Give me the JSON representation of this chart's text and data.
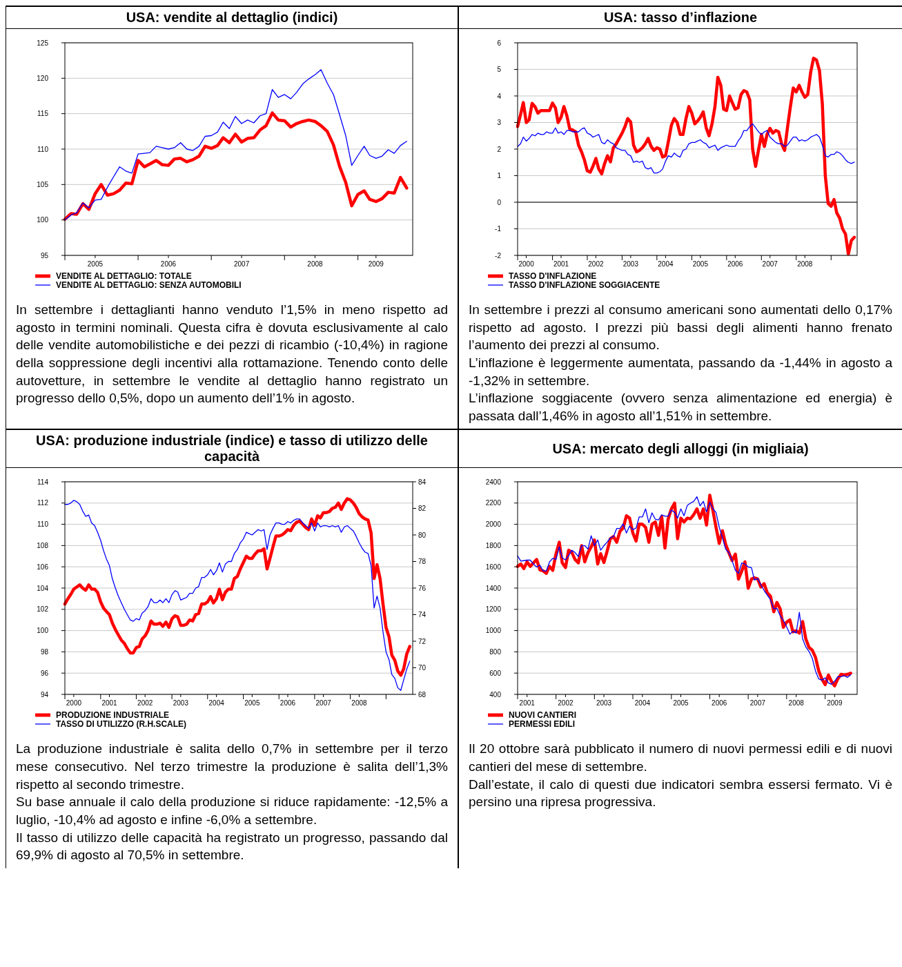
{
  "chart_data": [
    {
      "type": "line",
      "title": "USA: vendite al dettaglio (indici)",
      "grid": "y",
      "legend": "bottom",
      "x": [
        "2005-01",
        "2005-02",
        "2005-03",
        "2005-04",
        "2005-05",
        "2005-06",
        "2005-07",
        "2005-08",
        "2005-09",
        "2005-10",
        "2005-11",
        "2005-12",
        "2006-01",
        "2006-02",
        "2006-03",
        "2006-04",
        "2006-05",
        "2006-06",
        "2006-07",
        "2006-08",
        "2006-09",
        "2006-10",
        "2006-11",
        "2006-12",
        "2007-01",
        "2007-02",
        "2007-03",
        "2007-04",
        "2007-05",
        "2007-06",
        "2007-07",
        "2007-08",
        "2007-09",
        "2007-10",
        "2007-11",
        "2007-12",
        "2008-01",
        "2008-02",
        "2008-03",
        "2008-04",
        "2008-05",
        "2008-06",
        "2008-07",
        "2008-08",
        "2008-09",
        "2008-10",
        "2008-11",
        "2008-12",
        "2009-01",
        "2009-02",
        "2009-03",
        "2009-04",
        "2009-05",
        "2009-06",
        "2009-07",
        "2009-08",
        "2009-09"
      ],
      "xlim": [
        "2005-01",
        "2009-10"
      ],
      "xticks": [
        {
          "value": "2005-01",
          "label": null
        },
        {
          "value": "2005-06",
          "label": "2005"
        },
        {
          "value": "2006-01",
          "label": null
        },
        {
          "value": "2006-06",
          "label": "2006"
        },
        {
          "value": "2007-01",
          "label": null
        },
        {
          "value": "2007-06",
          "label": "2007"
        },
        {
          "value": "2008-01",
          "label": null
        },
        {
          "value": "2008-06",
          "label": "2008"
        },
        {
          "value": "2009-01",
          "label": null
        },
        {
          "value": "2009-04",
          "label": "2009"
        }
      ],
      "ylim": [
        95,
        125
      ],
      "yticks": [
        95,
        100,
        105,
        110,
        115,
        120,
        125
      ],
      "series": [
        {
          "name": "VENDITE AL DETTAGLIO: TOTALE",
          "color": "#ff0000",
          "values": [
            100.1,
            100.9,
            100.8,
            102.3,
            101.5,
            103.7,
            105.0,
            103.5,
            103.7,
            104.2,
            105.2,
            105.1,
            108.4,
            107.5,
            107.9,
            108.4,
            107.8,
            107.7,
            108.6,
            108.7,
            108.2,
            108.5,
            109.0,
            110.4,
            110.1,
            110.5,
            111.6,
            110.9,
            112.1,
            111.0,
            111.5,
            111.6,
            112.7,
            113.3,
            115.1,
            114.1,
            114.0,
            113.1,
            113.6,
            113.9,
            114.1,
            113.9,
            113.3,
            112.5,
            110.6,
            107.6,
            105.3,
            102.0,
            103.6,
            104.1,
            102.9,
            102.6,
            103.0,
            103.9,
            103.8,
            106.0,
            104.5
          ]
        },
        {
          "name": "VENDITE AL DETTAGLIO: SENZA AUTOMOBILI",
          "color": "#0000ff",
          "values": [
            100.0,
            100.7,
            101.0,
            102.4,
            101.7,
            102.8,
            102.9,
            104.6,
            106.1,
            107.5,
            106.9,
            106.6,
            109.3,
            109.4,
            109.5,
            110.4,
            110.2,
            110.0,
            110.2,
            110.9,
            110.0,
            109.8,
            110.4,
            111.8,
            111.9,
            112.4,
            113.8,
            112.9,
            114.6,
            113.6,
            114.1,
            113.7,
            114.7,
            115.0,
            118.4,
            117.3,
            117.7,
            117.1,
            118.0,
            119.2,
            119.9,
            120.5,
            121.2,
            119.3,
            117.7,
            114.9,
            111.9,
            107.7,
            109.1,
            110.4,
            109.1,
            108.7,
            109.0,
            109.9,
            109.4,
            110.5,
            111.1
          ]
        }
      ],
      "annotations": [
        "In settembre i dettaglianti hanno venduto l’1,5% in meno rispetto ad agosto in termini nominali. Questa cifra è dovuta esclusivamente al calo delle vendite automobilistiche e dei pezzi di ricambio (-10,4%) in ragione della soppressione degli incentivi alla rottamazione. Tenendo conto delle autovetture, in settembre le vendite al dettaglio hanno registrato un progresso dello 0,5%, dopo un aumento dell’1% in agosto."
      ]
    },
    {
      "type": "line",
      "title": "USA: tasso d’inflazione",
      "grid": "y",
      "legend": "bottom",
      "x": [
        "2000-01",
        "2000-02",
        "2000-03",
        "2000-04",
        "2000-05",
        "2000-06",
        "2000-07",
        "2000-08",
        "2000-09",
        "2000-10",
        "2000-11",
        "2000-12",
        "2001-01",
        "2001-02",
        "2001-03",
        "2001-04",
        "2001-05",
        "2001-06",
        "2001-07",
        "2001-08",
        "2001-09",
        "2001-10",
        "2001-11",
        "2001-12",
        "2002-01",
        "2002-02",
        "2002-03",
        "2002-04",
        "2002-05",
        "2002-06",
        "2002-07",
        "2002-08",
        "2002-09",
        "2002-10",
        "2002-11",
        "2002-12",
        "2003-01",
        "2003-02",
        "2003-03",
        "2003-04",
        "2003-05",
        "2003-06",
        "2003-07",
        "2003-08",
        "2003-09",
        "2003-10",
        "2003-11",
        "2003-12",
        "2004-01",
        "2004-02",
        "2004-03",
        "2004-04",
        "2004-05",
        "2004-06",
        "2004-07",
        "2004-08",
        "2004-09",
        "2004-10",
        "2004-11",
        "2004-12",
        "2005-01",
        "2005-02",
        "2005-03",
        "2005-04",
        "2005-05",
        "2005-06",
        "2005-07",
        "2005-08",
        "2005-09",
        "2005-10",
        "2005-11",
        "2005-12",
        "2006-01",
        "2006-02",
        "2006-03",
        "2006-04",
        "2006-05",
        "2006-06",
        "2006-07",
        "2006-08",
        "2006-09",
        "2006-10",
        "2006-11",
        "2006-12",
        "2007-01",
        "2007-02",
        "2007-03",
        "2007-04",
        "2007-05",
        "2007-06",
        "2007-07",
        "2007-08",
        "2007-09",
        "2007-10",
        "2007-11",
        "2007-12",
        "2008-01",
        "2008-02",
        "2008-03",
        "2008-04",
        "2008-05",
        "2008-06",
        "2008-07",
        "2008-08",
        "2008-09",
        "2008-10",
        "2008-11",
        "2008-12",
        "2009-01",
        "2009-02",
        "2009-03",
        "2009-04",
        "2009-05",
        "2009-06",
        "2009-07",
        "2009-08",
        "2009-09"
      ],
      "xlim": [
        "2000-01",
        "2009-10"
      ],
      "xticks": [
        {
          "value": "2000-01",
          "label": null
        },
        {
          "value": "2000-04",
          "label": "2000"
        },
        {
          "value": "2001-01",
          "label": null
        },
        {
          "value": "2001-04",
          "label": "2001"
        },
        {
          "value": "2002-01",
          "label": null
        },
        {
          "value": "2002-04",
          "label": "2002"
        },
        {
          "value": "2003-01",
          "label": null
        },
        {
          "value": "2003-04",
          "label": "2003"
        },
        {
          "value": "2004-01",
          "label": null
        },
        {
          "value": "2004-04",
          "label": "2004"
        },
        {
          "value": "2005-01",
          "label": null
        },
        {
          "value": "2005-04",
          "label": "2005"
        },
        {
          "value": "2006-01",
          "label": null
        },
        {
          "value": "2006-04",
          "label": "2006"
        },
        {
          "value": "2007-01",
          "label": null
        },
        {
          "value": "2007-04",
          "label": "2007"
        },
        {
          "value": "2008-01",
          "label": null
        },
        {
          "value": "2008-04",
          "label": "2008"
        },
        {
          "value": "2009-01",
          "label": null
        }
      ],
      "ylim": [
        -2,
        6
      ],
      "yticks": [
        -2,
        -1,
        0,
        1,
        2,
        3,
        4,
        5,
        6
      ],
      "ref_lines": [
        {
          "axis": "y",
          "value": 0,
          "color": "#000000"
        }
      ],
      "series": [
        {
          "name": "TASSO D'INFLAZIONE",
          "color": "#ff0000",
          "values": [
            2.85,
            3.3,
            3.75,
            3.0,
            3.1,
            3.72,
            3.6,
            3.35,
            3.45,
            3.45,
            3.45,
            3.45,
            3.73,
            3.55,
            3.0,
            3.2,
            3.6,
            3.25,
            2.75,
            2.72,
            2.65,
            2.15,
            1.9,
            1.6,
            1.18,
            1.13,
            1.35,
            1.65,
            1.25,
            1.07,
            1.45,
            1.75,
            1.52,
            2.05,
            2.2,
            2.4,
            2.6,
            2.85,
            3.15,
            3.02,
            2.15,
            1.9,
            1.95,
            2.05,
            2.2,
            2.4,
            2.1,
            1.95,
            2.05,
            2.0,
            1.7,
            1.75,
            2.3,
            2.9,
            3.15,
            3.0,
            2.55,
            2.55,
            3.15,
            3.6,
            3.35,
            2.95,
            3.05,
            3.2,
            3.4,
            2.8,
            2.5,
            2.95,
            3.6,
            4.7,
            4.4,
            3.5,
            3.45,
            4.0,
            3.75,
            3.5,
            3.55,
            4.05,
            4.2,
            4.15,
            3.85,
            2.0,
            1.35,
            1.95,
            2.55,
            2.1,
            2.55,
            2.78,
            2.6,
            2.7,
            2.65,
            2.2,
            1.95,
            2.8,
            3.6,
            4.3,
            4.15,
            4.4,
            4.15,
            3.95,
            4.05,
            4.9,
            5.42,
            5.35,
            4.95,
            3.7,
            1.0,
            -0.05,
            -0.15,
            0.1,
            -0.4,
            -0.6,
            -1.0,
            -1.2,
            -1.95,
            -1.44,
            -1.32
          ]
        },
        {
          "name": "TASSO D'INFLAZIONE SOGGIACENTE",
          "color": "#0000ff",
          "values": [
            2.1,
            2.2,
            2.45,
            2.3,
            2.4,
            2.55,
            2.5,
            2.6,
            2.55,
            2.55,
            2.65,
            2.6,
            2.6,
            2.8,
            2.6,
            2.65,
            2.55,
            2.7,
            2.7,
            2.65,
            2.65,
            2.65,
            2.75,
            2.8,
            2.6,
            2.55,
            2.45,
            2.5,
            2.55,
            2.25,
            2.2,
            2.35,
            2.25,
            2.2,
            2.05,
            2.0,
            1.95,
            1.95,
            1.8,
            1.75,
            1.5,
            1.55,
            1.5,
            1.55,
            1.3,
            1.25,
            1.3,
            1.1,
            1.1,
            1.15,
            1.25,
            1.55,
            1.75,
            1.7,
            1.85,
            1.75,
            1.7,
            1.95,
            2.0,
            2.2,
            2.25,
            2.25,
            2.3,
            2.35,
            2.25,
            2.2,
            2.05,
            2.1,
            2.15,
            1.95,
            2.05,
            2.1,
            2.15,
            2.1,
            2.1,
            2.1,
            2.3,
            2.45,
            2.7,
            2.7,
            2.85,
            2.95,
            2.8,
            2.65,
            2.55,
            2.65,
            2.7,
            2.45,
            2.35,
            2.25,
            2.2,
            2.2,
            2.1,
            2.15,
            2.3,
            2.45,
            2.45,
            2.3,
            2.35,
            2.3,
            2.35,
            2.45,
            2.5,
            2.55,
            2.45,
            2.15,
            1.75,
            1.7,
            1.8,
            1.8,
            1.9,
            1.85,
            1.75,
            1.6,
            1.5,
            1.46,
            1.51
          ]
        }
      ],
      "annotations": [
        "In settembre i prezzi al consumo americani sono aumentati dello 0,17% rispetto ad agosto. I prezzi più bassi degli alimenti hanno frenato l’aumento dei prezzi al consumo.",
        "L’inflazione è leggermente aumentata, passando da -1,44% in agosto a -1,32% in settembre.",
        "L’inflazione soggiacente (ovvero senza alimentazione ed energia) è passata dall’1,46% in agosto all’1,51% in settembre."
      ]
    },
    {
      "type": "line",
      "title": "USA: produzione industriale (indice) e tasso di utilizzo delle capacità",
      "grid": "y",
      "legend": "bottom",
      "x": [
        "2000-01",
        "2000-02",
        "2000-03",
        "2000-04",
        "2000-05",
        "2000-06",
        "2000-07",
        "2000-08",
        "2000-09",
        "2000-10",
        "2000-11",
        "2000-12",
        "2001-01",
        "2001-02",
        "2001-03",
        "2001-04",
        "2001-05",
        "2001-06",
        "2001-07",
        "2001-08",
        "2001-09",
        "2001-10",
        "2001-11",
        "2001-12",
        "2002-01",
        "2002-02",
        "2002-03",
        "2002-04",
        "2002-05",
        "2002-06",
        "2002-07",
        "2002-08",
        "2002-09",
        "2002-10",
        "2002-11",
        "2002-12",
        "2003-01",
        "2003-02",
        "2003-03",
        "2003-04",
        "2003-05",
        "2003-06",
        "2003-07",
        "2003-08",
        "2003-09",
        "2003-10",
        "2003-11",
        "2003-12",
        "2004-01",
        "2004-02",
        "2004-03",
        "2004-04",
        "2004-05",
        "2004-06",
        "2004-07",
        "2004-08",
        "2004-09",
        "2004-10",
        "2004-11",
        "2004-12",
        "2005-01",
        "2005-02",
        "2005-03",
        "2005-04",
        "2005-05",
        "2005-06",
        "2005-07",
        "2005-08",
        "2005-09",
        "2005-10",
        "2005-11",
        "2005-12",
        "2006-01",
        "2006-02",
        "2006-03",
        "2006-04",
        "2006-05",
        "2006-06",
        "2006-07",
        "2006-08",
        "2006-09",
        "2006-10",
        "2006-11",
        "2006-12",
        "2007-01",
        "2007-02",
        "2007-03",
        "2007-04",
        "2007-05",
        "2007-06",
        "2007-07",
        "2007-08",
        "2007-09",
        "2007-10",
        "2007-11",
        "2007-12",
        "2008-01",
        "2008-02",
        "2008-03",
        "2008-04",
        "2008-05",
        "2008-06",
        "2008-07",
        "2008-08",
        "2008-09",
        "2008-10",
        "2008-11",
        "2008-12",
        "2009-01",
        "2009-02",
        "2009-03",
        "2009-04",
        "2009-05",
        "2009-06",
        "2009-07",
        "2009-08",
        "2009-09"
      ],
      "xlim": [
        "2000-01",
        "2009-10"
      ],
      "xticks": [
        {
          "value": "2000-01",
          "label": null
        },
        {
          "value": "2000-04",
          "label": "2000"
        },
        {
          "value": "2001-01",
          "label": null
        },
        {
          "value": "2001-04",
          "label": "2001"
        },
        {
          "value": "2002-01",
          "label": null
        },
        {
          "value": "2002-04",
          "label": "2002"
        },
        {
          "value": "2003-01",
          "label": null
        },
        {
          "value": "2003-04",
          "label": "2003"
        },
        {
          "value": "2004-01",
          "label": null
        },
        {
          "value": "2004-04",
          "label": "2004"
        },
        {
          "value": "2005-01",
          "label": null
        },
        {
          "value": "2005-04",
          "label": "2005"
        },
        {
          "value": "2006-01",
          "label": null
        },
        {
          "value": "2006-04",
          "label": "2006"
        },
        {
          "value": "2007-01",
          "label": null
        },
        {
          "value": "2007-04",
          "label": "2007"
        },
        {
          "value": "2008-01",
          "label": null
        },
        {
          "value": "2008-04",
          "label": "2008"
        },
        {
          "value": "2009-01",
          "label": null
        }
      ],
      "ylim": [
        94,
        114
      ],
      "yticks": [
        94,
        96,
        98,
        100,
        102,
        104,
        106,
        108,
        110,
        112,
        114
      ],
      "y2lim": [
        68,
        84
      ],
      "y2ticks": [
        68,
        70,
        72,
        74,
        76,
        78,
        80,
        82,
        84
      ],
      "series": [
        {
          "name": "PRODUZIONE INDUSTRIALE",
          "color": "#ff0000",
          "values": [
            102.5,
            103.0,
            103.4,
            103.9,
            104.1,
            104.3,
            104.0,
            103.8,
            104.3,
            103.9,
            103.9,
            103.6,
            102.7,
            102.1,
            101.8,
            101.5,
            100.7,
            100.1,
            99.6,
            99.1,
            98.8,
            98.3,
            97.9,
            97.9,
            98.4,
            98.5,
            99.2,
            99.5,
            100.0,
            100.9,
            100.6,
            100.6,
            100.7,
            100.4,
            100.8,
            100.3,
            101.1,
            101.4,
            101.3,
            100.5,
            100.5,
            100.6,
            101.0,
            100.9,
            101.5,
            101.6,
            102.5,
            102.5,
            102.7,
            103.2,
            102.6,
            103.0,
            103.9,
            102.9,
            103.6,
            103.9,
            103.9,
            104.9,
            105.1,
            105.8,
            106.4,
            107.0,
            106.8,
            106.8,
            107.2,
            107.5,
            107.5,
            107.7,
            105.8,
            106.8,
            107.9,
            108.9,
            108.9,
            109.0,
            109.2,
            109.5,
            109.4,
            109.9,
            110.2,
            110.3,
            110.0,
            109.7,
            109.5,
            110.5,
            109.9,
            110.8,
            110.6,
            111.1,
            111.1,
            111.2,
            111.5,
            111.6,
            112.0,
            111.4,
            112.0,
            112.4,
            112.3,
            112.0,
            111.6,
            111.0,
            110.7,
            110.5,
            110.4,
            109.2,
            104.9,
            106.2,
            104.9,
            102.5,
            100.3,
            99.4,
            97.7,
            97.2,
            96.2,
            95.8,
            96.4,
            97.8,
            98.5
          ]
        },
        {
          "name": "TASSO DI UTILIZZO (R.H.SCALE)",
          "color": "#0000ff",
          "axis": "y2",
          "values": [
            82.3,
            82.3,
            82.4,
            82.6,
            82.5,
            82.3,
            81.8,
            81.4,
            81.5,
            80.9,
            80.7,
            80.2,
            79.6,
            78.8,
            78.2,
            77.7,
            76.7,
            76.0,
            75.4,
            74.9,
            74.4,
            74.0,
            73.6,
            73.5,
            73.7,
            73.6,
            74.1,
            74.3,
            74.6,
            75.2,
            74.9,
            74.9,
            75.1,
            74.9,
            75.2,
            74.9,
            75.5,
            75.8,
            75.7,
            75.1,
            75.2,
            75.3,
            75.6,
            75.6,
            76.0,
            76.1,
            76.8,
            76.8,
            77.0,
            77.4,
            77.0,
            77.3,
            77.9,
            77.2,
            77.8,
            78.0,
            78.0,
            78.6,
            78.9,
            79.4,
            79.7,
            80.2,
            80.1,
            80.0,
            80.2,
            80.4,
            80.3,
            80.4,
            78.9,
            80.0,
            80.5,
            80.9,
            80.9,
            80.8,
            80.8,
            81.0,
            80.9,
            81.1,
            81.2,
            81.2,
            80.9,
            80.7,
            80.5,
            80.9,
            80.3,
            80.9,
            80.6,
            80.7,
            80.7,
            80.6,
            80.7,
            80.6,
            80.7,
            80.2,
            80.6,
            80.7,
            80.5,
            80.3,
            79.9,
            79.4,
            79.0,
            78.7,
            78.6,
            77.7,
            74.5,
            75.4,
            74.5,
            72.7,
            71.2,
            70.6,
            69.5,
            69.2,
            68.5,
            68.3,
            69.1,
            69.9,
            70.5
          ]
        }
      ],
      "annotations": [
        "La produzione industriale è salita dello 0,7% in settembre per il terzo mese consecutivo. Nel terzo trimestre la produzione è salita dell’1,3% rispetto al secondo trimestre.",
        "Su base annuale il calo della produzione si riduce rapidamente: -12,5% a luglio, -10,4% ad agosto e infine -6,0% a settembre.",
        "Il tasso di utilizzo delle capacità ha registrato un progresso, passando dal 69,9% di agosto al 70,5% in settembre."
      ]
    },
    {
      "type": "line",
      "title": "USA: mercato degli alloggi (in migliaia)",
      "grid": "y",
      "legend": "bottom",
      "x": [
        "2001-01",
        "2001-02",
        "2001-03",
        "2001-04",
        "2001-05",
        "2001-06",
        "2001-07",
        "2001-08",
        "2001-09",
        "2001-10",
        "2001-11",
        "2001-12",
        "2002-01",
        "2002-02",
        "2002-03",
        "2002-04",
        "2002-05",
        "2002-06",
        "2002-07",
        "2002-08",
        "2002-09",
        "2002-10",
        "2002-11",
        "2002-12",
        "2003-01",
        "2003-02",
        "2003-03",
        "2003-04",
        "2003-05",
        "2003-06",
        "2003-07",
        "2003-08",
        "2003-09",
        "2003-10",
        "2003-11",
        "2003-12",
        "2004-01",
        "2004-02",
        "2004-03",
        "2004-04",
        "2004-05",
        "2004-06",
        "2004-07",
        "2004-08",
        "2004-09",
        "2004-10",
        "2004-11",
        "2004-12",
        "2005-01",
        "2005-02",
        "2005-03",
        "2005-04",
        "2005-05",
        "2005-06",
        "2005-07",
        "2005-08",
        "2005-09",
        "2005-10",
        "2005-11",
        "2005-12",
        "2006-01",
        "2006-02",
        "2006-03",
        "2006-04",
        "2006-05",
        "2006-06",
        "2006-07",
        "2006-08",
        "2006-09",
        "2006-10",
        "2006-11",
        "2006-12",
        "2007-01",
        "2007-02",
        "2007-03",
        "2007-04",
        "2007-05",
        "2007-06",
        "2007-07",
        "2007-08",
        "2007-09",
        "2007-10",
        "2007-11",
        "2007-12",
        "2008-01",
        "2008-02",
        "2008-03",
        "2008-04",
        "2008-05",
        "2008-06",
        "2008-07",
        "2008-08",
        "2008-09",
        "2008-10",
        "2008-11",
        "2008-12",
        "2009-01",
        "2009-02",
        "2009-03",
        "2009-04",
        "2009-05",
        "2009-06",
        "2009-07",
        "2009-08",
        "2009-09"
      ],
      "xlim": [
        "2001-01",
        "2009-11"
      ],
      "xticks": [
        {
          "value": "2001-01",
          "label": null
        },
        {
          "value": "2001-04",
          "label": "2001"
        },
        {
          "value": "2002-01",
          "label": null
        },
        {
          "value": "2002-04",
          "label": "2002"
        },
        {
          "value": "2003-01",
          "label": null
        },
        {
          "value": "2003-04",
          "label": "2003"
        },
        {
          "value": "2004-01",
          "label": null
        },
        {
          "value": "2004-04",
          "label": "2004"
        },
        {
          "value": "2005-01",
          "label": null
        },
        {
          "value": "2005-04",
          "label": "2005"
        },
        {
          "value": "2006-01",
          "label": null
        },
        {
          "value": "2006-04",
          "label": "2006"
        },
        {
          "value": "2007-01",
          "label": null
        },
        {
          "value": "2007-04",
          "label": "2007"
        },
        {
          "value": "2008-01",
          "label": null
        },
        {
          "value": "2008-04",
          "label": "2008"
        },
        {
          "value": "2009-01",
          "label": null
        },
        {
          "value": "2009-04",
          "label": "2009"
        }
      ],
      "ylim": [
        400,
        2400
      ],
      "yticks": [
        400,
        600,
        800,
        1000,
        1200,
        1400,
        1600,
        1800,
        2000,
        2200,
        2400
      ],
      "series": [
        {
          "name": "NUOVI CANTIERI",
          "color": "#ff0000",
          "values": [
            1604,
            1626,
            1583,
            1647,
            1604,
            1637,
            1669,
            1572,
            1561,
            1539,
            1604,
            1567,
            1723,
            1831,
            1637,
            1593,
            1756,
            1734,
            1669,
            1637,
            1799,
            1647,
            1734,
            1788,
            1853,
            1626,
            1723,
            1641,
            1745,
            1864,
            1885,
            1831,
            1935,
            1965,
            2080,
            2058,
            1918,
            1842,
            2002,
            2000,
            1972,
            1831,
            2000,
            2022,
            1896,
            2073,
            1777,
            2048,
            2145,
            2199,
            1864,
            2058,
            2022,
            2058,
            2052,
            2090,
            2145,
            2058,
            2145,
            1993,
            2274,
            2123,
            1972,
            1820,
            1939,
            1810,
            1734,
            1658,
            1719,
            1485,
            1561,
            1647,
            1399,
            1485,
            1496,
            1485,
            1410,
            1442,
            1356,
            1323,
            1178,
            1265,
            1204,
            1031,
            1079,
            1100,
            988,
            999,
            977,
            1085,
            923,
            841,
            815,
            750,
            621,
            545,
            491,
            582,
            523,
            480,
            545,
            588,
            582,
            588,
            599
          ]
        },
        {
          "name": "PERMESSI EDILI",
          "color": "#0000ff",
          "values": [
            1702,
            1654,
            1658,
            1663,
            1663,
            1626,
            1598,
            1615,
            1561,
            1561,
            1647,
            1680,
            1669,
            1788,
            1684,
            1665,
            1706,
            1756,
            1734,
            1697,
            1799,
            1799,
            1766,
            1892,
            1799,
            1853,
            1756,
            1799,
            1831,
            1874,
            1885,
            1961,
            1961,
            2004,
            1918,
            1983,
            1950,
            1965,
            2069,
            2069,
            2145,
            2015,
            2108,
            2048,
            2041,
            2090,
            2076,
            2076,
            2134,
            2112,
            2058,
            2145,
            2080,
            2177,
            2199,
            2216,
            2259,
            2173,
            2216,
            2117,
            2209,
            2145,
            2112,
            1972,
            1874,
            1766,
            1734,
            1658,
            1567,
            1539,
            1637,
            1626,
            1598,
            1593,
            1475,
            1490,
            1431,
            1377,
            1334,
            1291,
            1204,
            1209,
            1139,
            1096,
            1036,
            966,
            995,
            977,
            1172,
            923,
            847,
            804,
            739,
            621,
            545,
            534,
            556,
            508,
            495,
            523,
            567,
            567,
            577,
            560,
            584
          ]
        }
      ],
      "annotations": [
        "Il 20 ottobre sarà pubblicato il numero di nuovi permessi edili e di nuovi cantieri del mese di settembre.",
        "Dall’estate, il calo di questi due indicatori sembra essersi fermato. Vi è persino una ripresa progressiva."
      ]
    }
  ]
}
